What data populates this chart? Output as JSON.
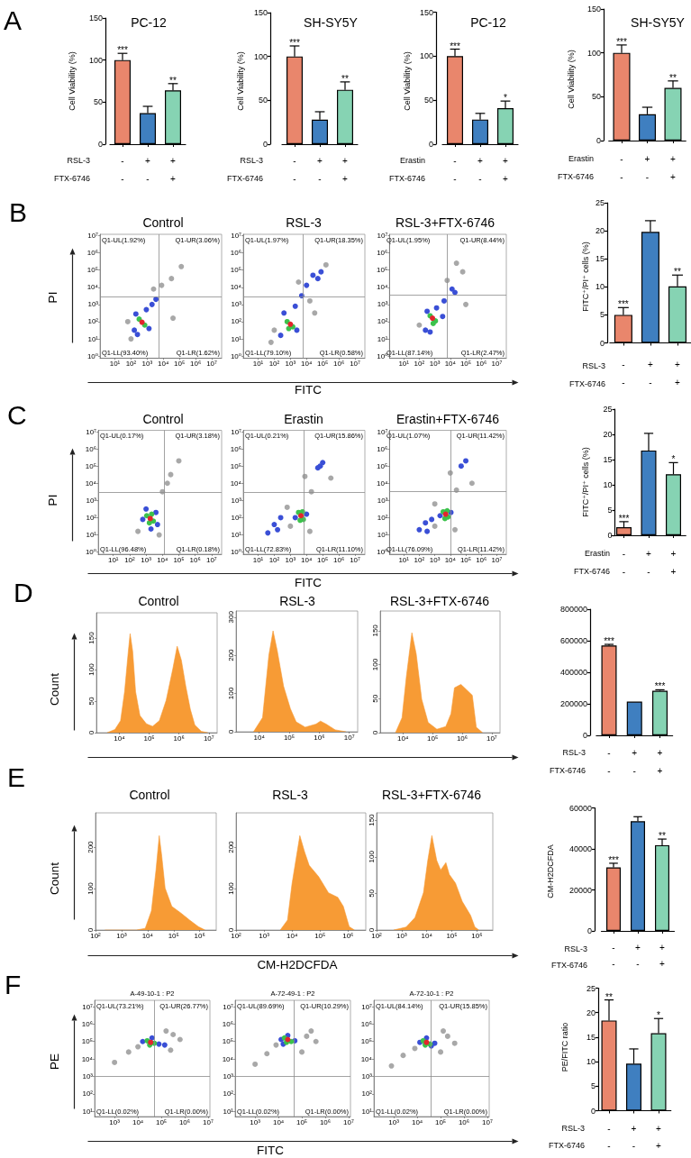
{
  "chart_data": [
    {
      "type": "bar",
      "title": "PC-12",
      "ylabel": "Cell Viability (%)",
      "xlabel": "RSL-3\nFTX-6746",
      "categories": [
        "-\n-",
        "+\n-",
        "+\n+"
      ],
      "values": [
        100,
        37,
        64
      ],
      "colors": [
        "#e9866c",
        "#3f7fc0",
        "#86d3b3"
      ],
      "errors": [
        [
          100,
          108
        ],
        [
          37,
          45
        ],
        [
          64,
          72
        ]
      ],
      "value_labels": [
        "***",
        null,
        "**"
      ],
      "ylim": [
        0,
        150
      ],
      "yticks": [
        0,
        50,
        100,
        150
      ],
      "annotations": [
        "A"
      ]
    },
    {
      "type": "bar",
      "title": "SH-SY5Y",
      "ylabel": "Cell Viability (%)",
      "xlabel": "RSL-3\nFTX-6746",
      "categories": [
        "-\n-",
        "+\n-",
        "+\n+"
      ],
      "values": [
        100,
        28,
        62
      ],
      "colors": [
        "#e9866c",
        "#3f7fc0",
        "#86d3b3"
      ],
      "errors": [
        [
          100,
          112
        ],
        [
          28,
          37
        ],
        [
          62,
          71
        ]
      ],
      "value_labels": [
        "***",
        null,
        "**"
      ],
      "ylim": [
        0,
        150
      ],
      "yticks": [
        0,
        50,
        100,
        150
      ]
    },
    {
      "type": "bar",
      "title": "PC-12",
      "ylabel": "Cell Viability (%)",
      "xlabel": "Erastin\nFTX-6746",
      "categories": [
        "-\n-",
        "+\n-",
        "+\n+"
      ],
      "values": [
        100,
        28,
        41
      ],
      "colors": [
        "#e9866c",
        "#3f7fc0",
        "#86d3b3"
      ],
      "errors": [
        [
          100,
          108
        ],
        [
          28,
          35
        ],
        [
          41,
          49
        ]
      ],
      "value_labels": [
        "***",
        null,
        "*"
      ],
      "ylim": [
        0,
        150
      ],
      "yticks": [
        0,
        50,
        100,
        150
      ]
    },
    {
      "type": "bar",
      "title": "SH-SY5Y",
      "ylabel": "Cell Viability (%)",
      "xlabel": "Erastin\nFTX-6746",
      "categories": [
        "-\n-",
        "+\n-",
        "+\n+"
      ],
      "values": [
        100,
        30,
        60
      ],
      "colors": [
        "#e9866c",
        "#3f7fc0",
        "#86d3b3"
      ],
      "errors": [
        [
          100,
          109
        ],
        [
          30,
          38
        ],
        [
          60,
          68
        ]
      ],
      "value_labels": [
        "***",
        null,
        "**"
      ],
      "ylim": [
        0,
        150
      ],
      "yticks": [
        0,
        50,
        100,
        150
      ]
    },
    {
      "type": "scatter",
      "title": "Control",
      "ylabel": "PI",
      "x": [
        32000,
        130000,
        2500,
        40000,
        100,
        7900,
        63,
        160,
        200,
        890,
        2000,
        3500,
        1300,
        250,
        320,
        710,
        480
      ],
      "values": [
        32000,
        160000,
        7900,
        160,
        10,
        13000,
        100,
        32,
        280,
        500,
        1000,
        2000,
        40,
        18,
        140,
        63,
        93
      ],
      "colors": [
        "#a8a8a8",
        "#a8a8a8",
        "#a8a8a8",
        "#a8a8a8",
        "#a8a8a8",
        "#a8a8a8",
        "#a8a8a8",
        "#3a4fd6",
        "#3a4fd6",
        "#3a4fd6",
        "#3a4fd6",
        "#3a4fd6",
        "#3a4fd6",
        "#3a4fd6",
        "#3cc24c",
        "#3cc24c",
        "#e3262b"
      ],
      "marker": "circle",
      "log": "xy",
      "xlim": [
        1.2,
        41000000
      ],
      "ylim": [
        0.75,
        12000000
      ],
      "xticks": [
        {
          "value": 10,
          "label": "10¹"
        },
        {
          "value": 100,
          "label": "10²"
        },
        {
          "value": 1000,
          "label": "10³"
        },
        {
          "value": 10000,
          "label": "10⁴"
        },
        {
          "value": 100000,
          "label": "10⁵"
        },
        {
          "value": 1000000,
          "label": "10⁶"
        },
        {
          "value": 10000000,
          "label": "10⁷"
        }
      ],
      "yticks": [
        {
          "value": 1,
          "label": "10⁰"
        },
        {
          "value": 10,
          "label": "10¹"
        },
        {
          "value": 100,
          "label": "10²"
        },
        {
          "value": 1000,
          "label": "10³"
        },
        {
          "value": 10000,
          "label": "10⁴"
        },
        {
          "value": 100000,
          "label": "10⁵"
        },
        {
          "value": 1000000,
          "label": "10⁶"
        },
        {
          "value": 10000000,
          "label": "10⁷"
        }
      ],
      "ref_lines": [
        {
          "axis": "x",
          "value": 5200,
          "color": "#8c8c8c"
        },
        {
          "axis": "y",
          "value": 2900,
          "color": "#8c8c8c"
        }
      ],
      "annotations": [
        "B",
        "Q1-UL(1.92%)",
        "Q1-UR(3.06%)",
        "Q1-LL(93.40%)",
        "Q1-LR(1.62%)"
      ]
    },
    {
      "type": "scatter",
      "title": "RSL-3",
      "xlabel": "FITC",
      "x": [
        100,
        160000,
        16000,
        3200,
        63,
        32000,
        250,
        400,
        2000,
        5000,
        10000,
        25000,
        79000,
        50000,
        2500,
        630,
        1400,
        790,
        1000
      ],
      "values": [
        32,
        200000,
        1600,
        20000,
        6.3,
        320,
        16,
        320,
        790,
        3200,
        13000,
        50000,
        79000,
        32000,
        32,
        100,
        50,
        40,
        71
      ],
      "colors": [
        "#a8a8a8",
        "#a8a8a8",
        "#a8a8a8",
        "#a8a8a8",
        "#a8a8a8",
        "#a8a8a8",
        "#3a4fd6",
        "#3a4fd6",
        "#3a4fd6",
        "#3a4fd6",
        "#3a4fd6",
        "#3a4fd6",
        "#3a4fd6",
        "#3a4fd6",
        "#3a4fd6",
        "#3cc24c",
        "#3cc24c",
        "#3cc24c",
        "#e3262b"
      ],
      "marker": "circle",
      "log": "xy",
      "xlim": [
        1.2,
        41000000
      ],
      "ylim": [
        0.75,
        12000000
      ],
      "xticks": [
        {
          "value": 10,
          "label": "10¹"
        },
        {
          "value": 100,
          "label": "10²"
        },
        {
          "value": 1000,
          "label": "10³"
        },
        {
          "value": 10000,
          "label": "10⁴"
        },
        {
          "value": 100000,
          "label": "10⁵"
        },
        {
          "value": 1000000,
          "label": "10⁶"
        },
        {
          "value": 10000000,
          "label": "10⁷"
        }
      ],
      "yticks": [
        {
          "value": 1,
          "label": "10⁰"
        },
        {
          "value": 10,
          "label": "10¹"
        },
        {
          "value": 100,
          "label": "10²"
        },
        {
          "value": 1000,
          "label": "10³"
        },
        {
          "value": 10000,
          "label": "10⁴"
        },
        {
          "value": 100000,
          "label": "10⁵"
        },
        {
          "value": 1000000,
          "label": "10⁶"
        },
        {
          "value": 10000000,
          "label": "10⁷"
        }
      ],
      "ref_lines": [
        {
          "axis": "x",
          "value": 5900,
          "color": "#8c8c8c"
        },
        {
          "axis": "y",
          "value": 2900,
          "color": "#8c8c8c"
        }
      ],
      "annotations": [
        "Q1-UL(1.97%)",
        "Q1-UR(18.35%)",
        "Q1-LL(79.10%)",
        "Q1-LR(0.58%)"
      ]
    },
    {
      "type": "scatter",
      "title": "RSL-3+FTX-6746",
      "x": [
        63000,
        6300,
        100000,
        100,
        25000,
        250,
        320,
        1300,
        4000,
        13000,
        20000,
        3200,
        500,
        500,
        1100,
        790,
        710
      ],
      "values": [
        79000,
        25000,
        1000,
        63,
        250000,
        32,
        400,
        630,
        1600,
        7900,
        5000,
        200,
        25,
        220,
        110,
        79,
        160
      ],
      "colors": [
        "#a8a8a8",
        "#a8a8a8",
        "#a8a8a8",
        "#a8a8a8",
        "#a8a8a8",
        "#3a4fd6",
        "#3a4fd6",
        "#3a4fd6",
        "#3a4fd6",
        "#3a4fd6",
        "#3a4fd6",
        "#3a4fd6",
        "#3a4fd6",
        "#3cc24c",
        "#3cc24c",
        "#3cc24c",
        "#e3262b"
      ],
      "marker": "circle",
      "log": "xy",
      "xlim": [
        1.2,
        41000000
      ],
      "ylim": [
        0.75,
        12000000
      ],
      "xticks": [
        {
          "value": 10,
          "label": "10¹"
        },
        {
          "value": 100,
          "label": "10²"
        },
        {
          "value": 1000,
          "label": "10³"
        },
        {
          "value": 10000,
          "label": "10⁴"
        },
        {
          "value": 100000,
          "label": "10⁵"
        },
        {
          "value": 1000000,
          "label": "10⁶"
        },
        {
          "value": 10000000,
          "label": "10⁷"
        }
      ],
      "yticks": [
        {
          "value": 1,
          "label": "10⁰"
        },
        {
          "value": 10,
          "label": "10¹"
        },
        {
          "value": 100,
          "label": "10²"
        },
        {
          "value": 1000,
          "label": "10³"
        },
        {
          "value": 10000,
          "label": "10⁴"
        },
        {
          "value": 100000,
          "label": "10⁵"
        },
        {
          "value": 1000000,
          "label": "10⁶"
        },
        {
          "value": 10000000,
          "label": "10⁷"
        }
      ],
      "ref_lines": [
        {
          "axis": "x",
          "value": 6300,
          "color": "#8c8c8c"
        },
        {
          "axis": "y",
          "value": 3500,
          "color": "#8c8c8c"
        }
      ],
      "annotations": [
        "Q1-UL(1.95%)",
        "Q1-UR(8.44%)",
        "Q1-LL(87.14%)",
        "Q1-LR(2.47%)"
      ]
    },
    {
      "type": "bar",
      "ylabel": "FITC⁺/PI⁺ cells (%)",
      "xlabel": "RSL-3\nFTX-6746",
      "categories": [
        "-\n-",
        "+\n-",
        "+\n+"
      ],
      "values": [
        5.0,
        19.8,
        10.1
      ],
      "colors": [
        "#e9866c",
        "#3f7fc0",
        "#86d3b3"
      ],
      "errors": [
        [
          5.0,
          6.3
        ],
        [
          19.8,
          21.8
        ],
        [
          10.1,
          12.1
        ]
      ],
      "value_labels": [
        "***",
        null,
        "**"
      ],
      "ylim": [
        0,
        25
      ],
      "yticks": [
        0,
        5,
        10,
        15,
        20,
        25
      ]
    },
    {
      "type": "scatter",
      "title": "Control",
      "ylabel": "PI",
      "x": [
        10000,
        32000,
        100000,
        6300,
        320,
        20000,
        630,
        4000,
        2000,
        1000,
        5000,
        1100,
        2800,
        1600,
        2200,
        1800
      ],
      "values": [
        3200,
        32000,
        200000,
        10,
        16,
        10000,
        79,
        200,
        22,
        320,
        40,
        130,
        63,
        50,
        160,
        89
      ],
      "colors": [
        "#a8a8a8",
        "#a8a8a8",
        "#a8a8a8",
        "#a8a8a8",
        "#a8a8a8",
        "#a8a8a8",
        "#3a4fd6",
        "#3a4fd6",
        "#3a4fd6",
        "#3a4fd6",
        "#3a4fd6",
        "#3cc24c",
        "#3cc24c",
        "#3cc24c",
        "#3cc24c",
        "#e3262b"
      ],
      "marker": "circle",
      "log": "xy",
      "xlim": [
        1.2,
        41000000
      ],
      "ylim": [
        0.75,
        12000000
      ],
      "xticks": [
        {
          "value": 10,
          "label": "10¹"
        },
        {
          "value": 100,
          "label": "10²"
        },
        {
          "value": 1000,
          "label": "10³"
        },
        {
          "value": 10000,
          "label": "10⁴"
        },
        {
          "value": 100000,
          "label": "10⁵"
        },
        {
          "value": 1000000,
          "label": "10⁶"
        },
        {
          "value": 10000000,
          "label": "10⁷"
        }
      ],
      "yticks": [
        {
          "value": 1,
          "label": "10⁰"
        },
        {
          "value": 10,
          "label": "10¹"
        },
        {
          "value": 100,
          "label": "10²"
        },
        {
          "value": 1000,
          "label": "10³"
        },
        {
          "value": 10000,
          "label": "10⁴"
        },
        {
          "value": 100000,
          "label": "10⁵"
        },
        {
          "value": 1000000,
          "label": "10⁶"
        },
        {
          "value": 10000000,
          "label": "10⁷"
        }
      ],
      "ref_lines": [
        {
          "axis": "x",
          "value": 13000,
          "color": "#8c8c8c"
        },
        {
          "axis": "y",
          "value": 2900,
          "color": "#8c8c8c"
        }
      ],
      "annotations": [
        "C",
        "Q1-UL(0.17%)",
        "Q1-UR(3.18%)",
        "Q1-LL(96.48%)",
        "Q1-LR(0.18%)"
      ]
    },
    {
      "type": "scatter",
      "title": "Erastin",
      "xlabel": "FITC",
      "x": [
        1000,
        20000,
        16000,
        630,
        320000,
        7900,
        2000,
        10000,
        40,
        100,
        250,
        160,
        50000,
        100000,
        71000,
        3200,
        6300,
        4000,
        5600,
        4500
      ],
      "values": [
        32,
        3200,
        16,
        400,
        20000,
        25000,
        100,
        160,
        13,
        40,
        100,
        20,
        79000,
        160000,
        100000,
        200,
        79,
        71,
        220,
        130
      ],
      "colors": [
        "#a8a8a8",
        "#a8a8a8",
        "#a8a8a8",
        "#a8a8a8",
        "#a8a8a8",
        "#a8a8a8",
        "#3a4fd6",
        "#3a4fd6",
        "#3a4fd6",
        "#3a4fd6",
        "#3a4fd6",
        "#3a4fd6",
        "#3a4fd6",
        "#3a4fd6",
        "#3a4fd6",
        "#3cc24c",
        "#3cc24c",
        "#3cc24c",
        "#3cc24c",
        "#e3262b"
      ],
      "marker": "circle",
      "log": "xy",
      "xlim": [
        1.2,
        41000000
      ],
      "ylim": [
        0.75,
        12000000
      ],
      "xticks": [
        {
          "value": 10,
          "label": "10¹"
        },
        {
          "value": 100,
          "label": "10²"
        },
        {
          "value": 1000,
          "label": "10³"
        },
        {
          "value": 10000,
          "label": "10⁴"
        },
        {
          "value": 100000,
          "label": "10⁵"
        },
        {
          "value": 1000000,
          "label": "10⁶"
        },
        {
          "value": 10000000,
          "label": "10⁷"
        }
      ],
      "yticks": [
        {
          "value": 1,
          "label": "10⁰"
        },
        {
          "value": 10,
          "label": "10¹"
        },
        {
          "value": 100,
          "label": "10²"
        },
        {
          "value": 1000,
          "label": "10³"
        },
        {
          "value": 10000,
          "label": "10⁴"
        },
        {
          "value": 100000,
          "label": "10⁵"
        },
        {
          "value": 1000000,
          "label": "10⁶"
        },
        {
          "value": 10000000,
          "label": "10⁷"
        }
      ],
      "ref_lines": [
        {
          "axis": "x",
          "value": 7100,
          "color": "#8c8c8c"
        },
        {
          "axis": "y",
          "value": 2900,
          "color": "#8c8c8c"
        }
      ],
      "annotations": [
        "Q1-UL(0.21%)",
        "Q1-UR(15.86%)",
        "Q1-LL(72.83%)",
        "Q1-LR(11.10%)"
      ]
    },
    {
      "type": "scatter",
      "title": "Erastin+FTX-6746",
      "x": [
        1000,
        25000,
        20000,
        1000,
        250000,
        10000,
        2200,
        11000,
        100,
        250,
        630,
        320,
        50000,
        100000,
        3500,
        7100,
        4500,
        6300,
        5000
      ],
      "values": [
        32,
        4000,
        20,
        630,
        10000,
        40000,
        130,
        200,
        20,
        50,
        79,
        16,
        100000,
        200000,
        220,
        110,
        89,
        250,
        160
      ],
      "colors": [
        "#a8a8a8",
        "#a8a8a8",
        "#a8a8a8",
        "#a8a8a8",
        "#a8a8a8",
        "#a8a8a8",
        "#3a4fd6",
        "#3a4fd6",
        "#3a4fd6",
        "#3a4fd6",
        "#3a4fd6",
        "#3a4fd6",
        "#3a4fd6",
        "#3a4fd6",
        "#3cc24c",
        "#3cc24c",
        "#3cc24c",
        "#3cc24c",
        "#e3262b"
      ],
      "marker": "circle",
      "log": "xy",
      "xlim": [
        1.2,
        41000000
      ],
      "ylim": [
        0.75,
        12000000
      ],
      "xticks": [
        {
          "value": 10,
          "label": "10¹"
        },
        {
          "value": 100,
          "label": "10²"
        },
        {
          "value": 1000,
          "label": "10³"
        },
        {
          "value": 10000,
          "label": "10⁴"
        },
        {
          "value": 100000,
          "label": "10⁵"
        },
        {
          "value": 1000000,
          "label": "10⁶"
        },
        {
          "value": 10000000,
          "label": "10⁷"
        }
      ],
      "yticks": [
        {
          "value": 1,
          "label": "10⁰"
        },
        {
          "value": 10,
          "label": "10¹"
        },
        {
          "value": 100,
          "label": "10²"
        },
        {
          "value": 1000,
          "label": "10³"
        },
        {
          "value": 10000,
          "label": "10⁴"
        },
        {
          "value": 100000,
          "label": "10⁵"
        },
        {
          "value": 1000000,
          "label": "10⁶"
        },
        {
          "value": 10000000,
          "label": "10⁷"
        }
      ],
      "ref_lines": [
        {
          "axis": "x",
          "value": 10000,
          "color": "#8c8c8c"
        },
        {
          "axis": "y",
          "value": 3200,
          "color": "#8c8c8c"
        }
      ],
      "annotations": [
        "Q1-UL(1.07%)",
        "Q1-UR(11.42%)",
        "Q1-LL(76.09%)",
        "Q1-LR(11.42%)"
      ]
    },
    {
      "type": "bar",
      "ylabel": "FITC⁺/PI⁺ cells (%)",
      "xlabel": "Erastin\nFTX-6746",
      "categories": [
        "-\n-",
        "+\n-",
        "+\n+"
      ],
      "values": [
        1.6,
        16.8,
        12.1
      ],
      "colors": [
        "#e9866c",
        "#3f7fc0",
        "#86d3b3"
      ],
      "errors": [
        [
          1.6,
          2.7
        ],
        [
          16.8,
          20.2
        ],
        [
          12.1,
          14.4
        ]
      ],
      "value_labels": [
        "***",
        null,
        "*"
      ],
      "ylim": [
        0,
        25
      ],
      "yticks": [
        0,
        5,
        10,
        15,
        20,
        25
      ]
    },
    {
      "type": "area",
      "title": "Control",
      "ylabel": "Count",
      "x": [
        3900,
        7100,
        11000,
        15000,
        20000,
        23000,
        28000,
        35000,
        49000,
        81000,
        130000,
        220000,
        370000,
        620000,
        870000,
        1200000,
        1700000,
        2400000,
        3400000,
        5600000,
        9300000
      ],
      "values": [
        0,
        5,
        19,
        65,
        129,
        157,
        129,
        65,
        27,
        14,
        10,
        19,
        51,
        101,
        137,
        115,
        73,
        37,
        12,
        2,
        0
      ],
      "color": "#f79b35",
      "log": "x",
      "xlim": [
        1700,
        19000000
      ],
      "ylim": [
        0,
        190
      ],
      "xticks": [
        {
          "value": 10000,
          "label": "10⁴"
        },
        {
          "value": 100000,
          "label": "10⁵"
        },
        {
          "value": 1000000,
          "label": "10⁶"
        },
        {
          "value": 10000000,
          "label": "10⁷"
        }
      ],
      "yticks": [
        0,
        50,
        100,
        150
      ],
      "annotations": [
        "D"
      ]
    },
    {
      "type": "area",
      "title": "RSL-3",
      "x": [
        6500,
        13000,
        21000,
        29000,
        40000,
        65000,
        110000,
        170000,
        340000,
        780000,
        1100000,
        1700000,
        3400000,
        7800000
      ],
      "values": [
        0,
        37,
        200,
        264,
        212,
        119,
        60,
        26,
        12,
        20,
        28,
        20,
        5,
        0
      ],
      "color": "#f79b35",
      "log": "x",
      "xlim": [
        1700,
        19000000
      ],
      "ylim": [
        0,
        316
      ],
      "xticks": [
        {
          "value": 10000,
          "label": "10⁴"
        },
        {
          "value": 100000,
          "label": "10⁵"
        },
        {
          "value": 1000000,
          "label": "10⁶"
        },
        {
          "value": 10000000,
          "label": "10⁷"
        }
      ],
      "yticks": [
        0,
        100,
        200,
        300
      ]
    },
    {
      "type": "area",
      "title": "RSL-3+FTX-6746",
      "x": [
        5600,
        9300,
        13000,
        20000,
        28000,
        43000,
        71000,
        140000,
        280000,
        420000,
        550000,
        910000,
        1500000,
        2200000,
        3000000,
        4900000
      ],
      "values": [
        0,
        22,
        82,
        147,
        116,
        49,
        15,
        5,
        9,
        28,
        66,
        71,
        62,
        55,
        8,
        0
      ],
      "color": "#f79b35",
      "log": "x",
      "xlim": [
        1700,
        19000000
      ],
      "ylim": [
        0,
        179
      ],
      "xticks": [
        {
          "value": 10000,
          "label": "10⁴"
        },
        {
          "value": 100000,
          "label": "10⁵"
        },
        {
          "value": 1000000,
          "label": "10⁶"
        },
        {
          "value": 10000000,
          "label": "10⁷"
        }
      ],
      "yticks": [
        0,
        50,
        100,
        150
      ]
    },
    {
      "type": "bar",
      "xlabel": "RSL-3\nFTX-6746",
      "categories": [
        "-\n-",
        "+\n-",
        "+\n+"
      ],
      "values": [
        570000,
        214000,
        283000
      ],
      "colors": [
        "#e9866c",
        "#3f7fc0",
        "#86d3b3"
      ],
      "errors": [
        [
          570000,
          577000
        ],
        null,
        [
          283000,
          289000
        ]
      ],
      "value_labels": [
        "***",
        null,
        "***"
      ],
      "ylim": [
        0,
        800000
      ],
      "yticks": [
        0,
        200000,
        400000,
        600000,
        800000
      ]
    },
    {
      "type": "area",
      "title": "Control",
      "ylabel": "Count",
      "x": [
        230,
        3700,
        8100,
        14000,
        21000,
        28000,
        35000,
        47000,
        85000,
        190000,
        410000,
        890000,
        1600000
      ],
      "values": [
        0,
        0,
        4,
        46,
        145,
        228,
        178,
        101,
        57,
        41,
        24,
        8,
        0
      ],
      "color": "#f79b35",
      "log": "x",
      "xlim": [
        100,
        4300000
      ],
      "ylim": [
        0,
        283
      ],
      "xticks": [
        {
          "value": 100,
          "label": "10²"
        },
        {
          "value": 1000,
          "label": "10³"
        },
        {
          "value": 10000,
          "label": "10⁴"
        },
        {
          "value": 100000,
          "label": "10⁵"
        },
        {
          "value": 1000000,
          "label": "10⁶"
        }
      ],
      "yticks": [
        0,
        100,
        200
      ],
      "annotations": [
        "E"
      ]
    },
    {
      "type": "area",
      "title": "RSL-3",
      "xlabel": "CM-H2DCFDA",
      "x": [
        3800,
        6900,
        10000,
        19000,
        28000,
        41000,
        89000,
        200000,
        430000,
        680000,
        1100000,
        1700000
      ],
      "values": [
        0,
        24,
        112,
        228,
        189,
        156,
        129,
        90,
        79,
        57,
        8,
        0
      ],
      "color": "#f79b35",
      "log": "x",
      "xlim": [
        100,
        4300000
      ],
      "ylim": [
        0,
        283
      ],
      "xticks": [
        {
          "value": 100,
          "label": "10²"
        },
        {
          "value": 1000,
          "label": "10³"
        },
        {
          "value": 10000,
          "label": "10⁴"
        },
        {
          "value": 100000,
          "label": "10⁵"
        },
        {
          "value": 1000000,
          "label": "10⁶"
        }
      ],
      "yticks": [
        0,
        100,
        200
      ]
    },
    {
      "type": "area",
      "title": "RSL-3+FTX-6746",
      "x": [
        480,
        1500,
        3400,
        7400,
        11000,
        16000,
        25000,
        36000,
        58000,
        79000,
        140000,
        260000,
        560000,
        830000,
        1200000
      ],
      "values": [
        0,
        4,
        17,
        51,
        95,
        129,
        95,
        82,
        92,
        76,
        64,
        39,
        20,
        4,
        0
      ],
      "color": "#f79b35",
      "log": "x",
      "xlim": [
        100,
        4300000
      ],
      "ylim": [
        0,
        160
      ],
      "xticks": [
        {
          "value": 100,
          "label": "10²"
        },
        {
          "value": 1000,
          "label": "10³"
        },
        {
          "value": 10000,
          "label": "10⁴"
        },
        {
          "value": 100000,
          "label": "10⁵"
        },
        {
          "value": 1000000,
          "label": "10⁶"
        }
      ],
      "yticks": [
        0,
        50,
        100,
        150
      ]
    },
    {
      "type": "bar",
      "ylabel": "CM-H2DCFDA",
      "xlabel": "RSL-3\nFTX-6746",
      "categories": [
        "-\n-",
        "+\n-",
        "+\n+"
      ],
      "values": [
        31000,
        53500,
        41800
      ],
      "colors": [
        "#e9866c",
        "#3f7fc0",
        "#86d3b3"
      ],
      "errors": [
        [
          31000,
          33000
        ],
        [
          53500,
          55700
        ],
        [
          41800,
          44800
        ]
      ],
      "value_labels": [
        "***",
        null,
        "**"
      ],
      "ylim": [
        0,
        60000
      ],
      "yticks": [
        0,
        20000,
        40000,
        60000
      ]
    },
    {
      "type": "scatter",
      "title": "A-49-10-1 : P2",
      "ylabel": "PE",
      "x": [
        320000,
        630000,
        160000,
        4000,
        1000,
        250000,
        10000,
        16000,
        79000,
        140000,
        40000,
        25000,
        50000,
        32000,
        35000
      ],
      "values": [
        250000,
        130000,
        400000,
        25000,
        6300,
        32000,
        50000,
        100000,
        71000,
        63000,
        160000,
        110000,
        79000,
        63000,
        89000
      ],
      "colors": [
        "#a8a8a8",
        "#a8a8a8",
        "#a8a8a8",
        "#a8a8a8",
        "#a8a8a8",
        "#a8a8a8",
        "#a8a8a8",
        "#3a4fd6",
        "#3a4fd6",
        "#3a4fd6",
        "#3a4fd6",
        "#3cc24c",
        "#3cc24c",
        "#3cc24c",
        "#e3262b"
      ],
      "marker": "circle",
      "log": "xy",
      "xlim": [
        140,
        12000000
      ],
      "ylim": [
        5,
        23000000
      ],
      "xticks": [
        {
          "value": 1000,
          "label": "10³"
        },
        {
          "value": 10000,
          "label": "10⁴"
        },
        {
          "value": 100000,
          "label": "10⁵"
        },
        {
          "value": 1000000,
          "label": "10⁶"
        },
        {
          "value": 10000000,
          "label": "10⁷"
        }
      ],
      "yticks": [
        {
          "value": 10,
          "label": "10¹"
        },
        {
          "value": 100,
          "label": "10²"
        },
        {
          "value": 1000,
          "label": "10³"
        },
        {
          "value": 10000,
          "label": "10⁴"
        },
        {
          "value": 100000,
          "label": "10⁵"
        },
        {
          "value": 1000000,
          "label": "10⁶"
        },
        {
          "value": 10000000,
          "label": "10⁷"
        }
      ],
      "ref_lines": [
        {
          "axis": "x",
          "value": 49000,
          "color": "#8c8c8c"
        },
        {
          "axis": "y",
          "value": 1000,
          "color": "#8c8c8c"
        }
      ],
      "annotations": [
        "F",
        "Q1-UL(73.21%)",
        "Q1-UR(26.77%)",
        "Q1-LL(0.02%)",
        "Q1-LR(0.00%)"
      ]
    },
    {
      "type": "scatter",
      "title": "A-72-49-1 : P2",
      "xlabel": "FITC",
      "x": [
        160000,
        400000,
        3200,
        1000,
        100000,
        7900,
        250000,
        13000,
        50000,
        25000,
        16000,
        18000,
        35000,
        22000,
        25000
      ],
      "values": [
        200000,
        100000,
        20000,
        5000,
        25000,
        63000,
        400000,
        130000,
        110000,
        220000,
        71000,
        160000,
        100000,
        89000,
        130000
      ],
      "colors": [
        "#a8a8a8",
        "#a8a8a8",
        "#a8a8a8",
        "#a8a8a8",
        "#a8a8a8",
        "#a8a8a8",
        "#a8a8a8",
        "#3a4fd6",
        "#3a4fd6",
        "#3a4fd6",
        "#3a4fd6",
        "#3cc24c",
        "#3cc24c",
        "#3cc24c",
        "#e3262b"
      ],
      "marker": "circle",
      "log": "xy",
      "xlim": [
        140,
        12000000
      ],
      "ylim": [
        5,
        23000000
      ],
      "xticks": [
        {
          "value": 1000,
          "label": "10³"
        },
        {
          "value": 10000,
          "label": "10⁴"
        },
        {
          "value": 100000,
          "label": "10⁵"
        },
        {
          "value": 1000000,
          "label": "10⁶"
        },
        {
          "value": 10000000,
          "label": "10⁷"
        }
      ],
      "yticks": [
        {
          "value": 10,
          "label": "10¹"
        },
        {
          "value": 100,
          "label": "10²"
        },
        {
          "value": 1000,
          "label": "10³"
        },
        {
          "value": 10000,
          "label": "10⁴"
        },
        {
          "value": 100000,
          "label": "10⁵"
        },
        {
          "value": 1000000,
          "label": "10⁶"
        },
        {
          "value": 10000000,
          "label": "10⁷"
        }
      ],
      "ref_lines": [
        {
          "axis": "x",
          "value": 44000,
          "color": "#8c8c8c"
        },
        {
          "axis": "y",
          "value": 1000,
          "color": "#8c8c8c"
        }
      ],
      "annotations": [
        "Q1-UL(89.69%)",
        "Q1-UR(10.29%)",
        "Q1-LL(0.02%)",
        "Q1-LR(0.00%)"
      ]
    },
    {
      "type": "scatter",
      "title": "A-72-10-1 : P2",
      "x": [
        200000,
        400000,
        2500,
        790,
        100000,
        7900,
        130000,
        13000,
        56000,
        25000,
        40000,
        18000,
        35000,
        22000,
        25000
      ],
      "values": [
        200000,
        79000,
        16000,
        4000,
        25000,
        40000,
        400000,
        89000,
        79000,
        160000,
        56000,
        110000,
        71000,
        63000,
        89000
      ],
      "colors": [
        "#a8a8a8",
        "#a8a8a8",
        "#a8a8a8",
        "#a8a8a8",
        "#a8a8a8",
        "#a8a8a8",
        "#a8a8a8",
        "#3a4fd6",
        "#3a4fd6",
        "#3a4fd6",
        "#3a4fd6",
        "#3cc24c",
        "#3cc24c",
        "#3cc24c",
        "#e3262b"
      ],
      "marker": "circle",
      "log": "xy",
      "xlim": [
        140,
        12000000
      ],
      "ylim": [
        5,
        23000000
      ],
      "xticks": [
        {
          "value": 1000,
          "label": "10³"
        },
        {
          "value": 10000,
          "label": "10⁴"
        },
        {
          "value": 100000,
          "label": "10⁵"
        },
        {
          "value": 1000000,
          "label": "10⁶"
        },
        {
          "value": 10000000,
          "label": "10⁷"
        }
      ],
      "yticks": [
        {
          "value": 10,
          "label": "10¹"
        },
        {
          "value": 100,
          "label": "10²"
        },
        {
          "value": 1000,
          "label": "10³"
        },
        {
          "value": 10000,
          "label": "10⁴"
        },
        {
          "value": 100000,
          "label": "10⁵"
        },
        {
          "value": 1000000,
          "label": "10⁶"
        },
        {
          "value": 10000000,
          "label": "10⁷"
        }
      ],
      "ref_lines": [
        {
          "axis": "x",
          "value": 40000,
          "color": "#8c8c8c"
        },
        {
          "axis": "y",
          "value": 1000,
          "color": "#8c8c8c"
        }
      ],
      "annotations": [
        "Q1-UL(84.14%)",
        "Q1-UR(15.85%)",
        "Q1-LL(0.02%)",
        "Q1-LR(0.00%)"
      ]
    },
    {
      "type": "bar",
      "ylabel": "PE/FITC ratio",
      "xlabel": "RSL-3\nFTX-6746",
      "categories": [
        "-\n-",
        "+\n-",
        "+\n+"
      ],
      "values": [
        18.4,
        9.6,
        15.8
      ],
      "colors": [
        "#e9866c",
        "#3f7fc0",
        "#86d3b3"
      ],
      "errors": [
        [
          18.4,
          22.6
        ],
        [
          9.6,
          12.6
        ],
        [
          15.8,
          18.8
        ]
      ],
      "value_labels": [
        "**",
        null,
        "*"
      ],
      "ylim": [
        0,
        25
      ],
      "yticks": [
        0,
        5,
        10,
        15,
        20,
        25
      ]
    }
  ]
}
